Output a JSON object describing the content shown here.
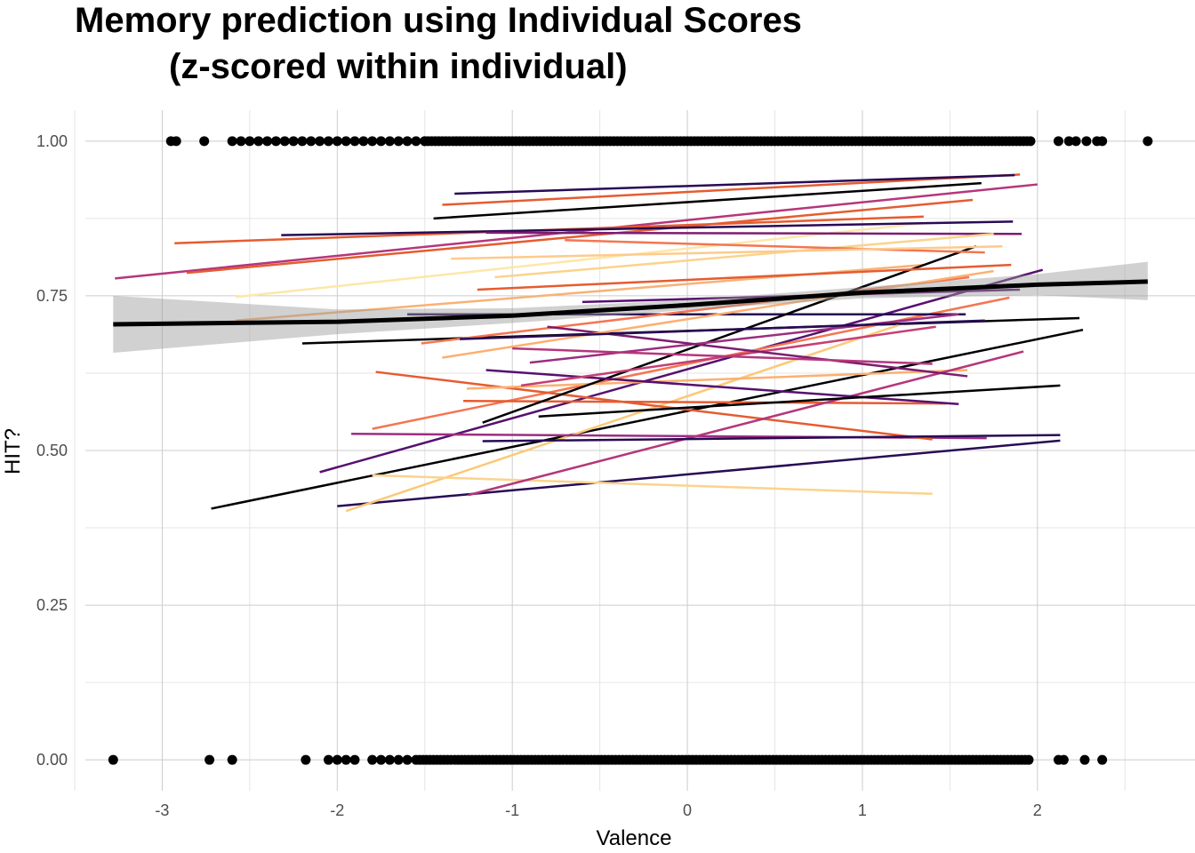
{
  "chart_data": {
    "type": "scatter",
    "title_line1": "Memory prediction using Individual Scores",
    "title_line2": "(z-scored within individual)",
    "xlabel": "Valence",
    "ylabel": "HIT?",
    "xlim": [
      -3.5,
      2.9
    ],
    "ylim": [
      -0.05,
      1.05
    ],
    "x_ticks": [
      -3,
      -2,
      -1,
      0,
      1,
      2
    ],
    "x_tick_labels": [
      "-3",
      "-2",
      "-1",
      "0",
      "1",
      "2"
    ],
    "y_ticks": [
      0,
      0.25,
      0.5,
      0.75,
      1
    ],
    "y_tick_labels": [
      "0.00",
      "0.25",
      "0.50",
      "0.75",
      "1.00"
    ],
    "grid": true,
    "points": {
      "y1_x": [
        -2.95,
        -2.92,
        -2.76,
        -2.6,
        -2.55,
        -2.5,
        -2.45,
        -2.4,
        -2.35,
        -2.3,
        -2.25,
        -2.2,
        -2.15,
        -2.1,
        -2.05,
        -2.0,
        -1.95,
        -1.9,
        -1.85,
        -1.8,
        -1.75,
        -1.7,
        -1.65,
        -1.6,
        -1.55,
        -1.5,
        2.12,
        2.18,
        2.22,
        2.28,
        2.34,
        2.37,
        2.63
      ],
      "y0_x": [
        -3.28,
        -2.73,
        -2.6,
        -2.18,
        -2.05,
        -2.0,
        -1.95,
        -1.9,
        -1.8,
        -1.75,
        -1.7,
        -1.65,
        -1.6,
        2.12,
        2.15,
        2.27,
        2.37
      ],
      "y1_band": [
        -1.5,
        1.97
      ],
      "y0_band": [
        -1.55,
        1.97
      ]
    },
    "overall_fit": {
      "x": [
        -3.28,
        -2.0,
        -1.0,
        0.0,
        1.0,
        2.0,
        2.63
      ],
      "y": [
        0.704,
        0.708,
        0.718,
        0.735,
        0.755,
        0.768,
        0.773
      ],
      "ci_upper": [
        0.75,
        0.728,
        0.73,
        0.743,
        0.764,
        0.785,
        0.805
      ],
      "ci_lower": [
        0.658,
        0.688,
        0.706,
        0.727,
        0.746,
        0.751,
        0.743
      ]
    },
    "individual_fits": [
      {
        "x1": -3.27,
        "y1": 0.778,
        "x2": 2.0,
        "y2": 0.93,
        "color": "#b5367a"
      },
      {
        "x1": -2.93,
        "y1": 0.835,
        "x2": 1.35,
        "y2": 0.878,
        "color": "#e55c30"
      },
      {
        "x1": -2.86,
        "y1": 0.787,
        "x2": 1.63,
        "y2": 0.905,
        "color": "#e55c30"
      },
      {
        "x1": -2.72,
        "y1": 0.406,
        "x2": 2.26,
        "y2": 0.695,
        "color": "#000004"
      },
      {
        "x1": -2.58,
        "y1": 0.748,
        "x2": 1.37,
        "y2": 0.868,
        "color": "#fde7a9"
      },
      {
        "x1": -2.58,
        "y1": 0.71,
        "x2": 1.35,
        "y2": 0.8,
        "color": "#f7b276"
      },
      {
        "x1": -2.32,
        "y1": 0.848,
        "x2": 1.86,
        "y2": 0.87,
        "color": "#280b54"
      },
      {
        "x1": -2.2,
        "y1": 0.673,
        "x2": 2.24,
        "y2": 0.714,
        "color": "#000004"
      },
      {
        "x1": -2.1,
        "y1": 0.465,
        "x2": 2.03,
        "y2": 0.792,
        "color": "#56106e"
      },
      {
        "x1": -2.0,
        "y1": 0.41,
        "x2": 2.13,
        "y2": 0.516,
        "color": "#280b54"
      },
      {
        "x1": -1.95,
        "y1": 0.402,
        "x2": 1.21,
        "y2": 0.703,
        "color": "#fbc978"
      },
      {
        "x1": -1.92,
        "y1": 0.527,
        "x2": 1.71,
        "y2": 0.52,
        "color": "#9c2e7f"
      },
      {
        "x1": -1.8,
        "y1": 0.535,
        "x2": 1.84,
        "y2": 0.747,
        "color": "#f37651"
      },
      {
        "x1": -1.8,
        "y1": 0.46,
        "x2": 1.4,
        "y2": 0.43,
        "color": "#fbd38d"
      },
      {
        "x1": -1.78,
        "y1": 0.627,
        "x2": 1.4,
        "y2": 0.518,
        "color": "#e55c30"
      },
      {
        "x1": -1.6,
        "y1": 0.72,
        "x2": 1.59,
        "y2": 0.72,
        "color": "#280b54"
      },
      {
        "x1": -1.52,
        "y1": 0.673,
        "x2": 1.61,
        "y2": 0.78,
        "color": "#f37651"
      },
      {
        "x1": -1.45,
        "y1": 0.875,
        "x2": 1.68,
        "y2": 0.932,
        "color": "#000004"
      },
      {
        "x1": -1.4,
        "y1": 0.897,
        "x2": 1.9,
        "y2": 0.946,
        "color": "#e55c30"
      },
      {
        "x1": -1.33,
        "y1": 0.915,
        "x2": 1.87,
        "y2": 0.945,
        "color": "#280b54"
      },
      {
        "x1": -1.28,
        "y1": 0.58,
        "x2": 1.48,
        "y2": 0.576,
        "color": "#e55c30"
      },
      {
        "x1": -1.26,
        "y1": 0.6,
        "x2": 1.6,
        "y2": 0.63,
        "color": "#fdaf70"
      },
      {
        "x1": -1.25,
        "y1": 0.428,
        "x2": 1.92,
        "y2": 0.66,
        "color": "#b5367a"
      },
      {
        "x1": -1.17,
        "y1": 0.515,
        "x2": 2.13,
        "y2": 0.525,
        "color": "#280b54"
      },
      {
        "x1": -1.17,
        "y1": 0.545,
        "x2": 1.65,
        "y2": 0.83,
        "color": "#000004"
      },
      {
        "x1": -1.15,
        "y1": 0.63,
        "x2": 1.55,
        "y2": 0.575,
        "color": "#56106e"
      },
      {
        "x1": -1.15,
        "y1": 0.852,
        "x2": 1.91,
        "y2": 0.85,
        "color": "#7c1d6f"
      },
      {
        "x1": -1.1,
        "y1": 0.78,
        "x2": 1.75,
        "y2": 0.85,
        "color": "#fbd38d"
      },
      {
        "x1": -0.95,
        "y1": 0.605,
        "x2": 1.42,
        "y2": 0.7,
        "color": "#c73e73"
      },
      {
        "x1": -0.9,
        "y1": 0.642,
        "x2": 1.55,
        "y2": 0.72,
        "color": "#9c2e7f"
      },
      {
        "x1": -0.85,
        "y1": 0.555,
        "x2": 2.13,
        "y2": 0.605,
        "color": "#000004"
      },
      {
        "x1": -0.8,
        "y1": 0.7,
        "x2": 1.6,
        "y2": 0.62,
        "color": "#7c1d6f"
      },
      {
        "x1": -0.7,
        "y1": 0.84,
        "x2": 1.7,
        "y2": 0.82,
        "color": "#f37651"
      },
      {
        "x1": -1.4,
        "y1": 0.65,
        "x2": 1.75,
        "y2": 0.79,
        "color": "#fdaf70"
      },
      {
        "x1": -1.35,
        "y1": 0.81,
        "x2": 1.8,
        "y2": 0.83,
        "color": "#feca8d"
      },
      {
        "x1": -1.3,
        "y1": 0.68,
        "x2": 1.7,
        "y2": 0.71,
        "color": "#280b54"
      },
      {
        "x1": -1.2,
        "y1": 0.76,
        "x2": 1.85,
        "y2": 0.8,
        "color": "#e55c30"
      },
      {
        "x1": -1.0,
        "y1": 0.665,
        "x2": 1.4,
        "y2": 0.64,
        "color": "#b5367a"
      },
      {
        "x1": -0.6,
        "y1": 0.74,
        "x2": 1.9,
        "y2": 0.76,
        "color": "#56106e"
      }
    ]
  }
}
